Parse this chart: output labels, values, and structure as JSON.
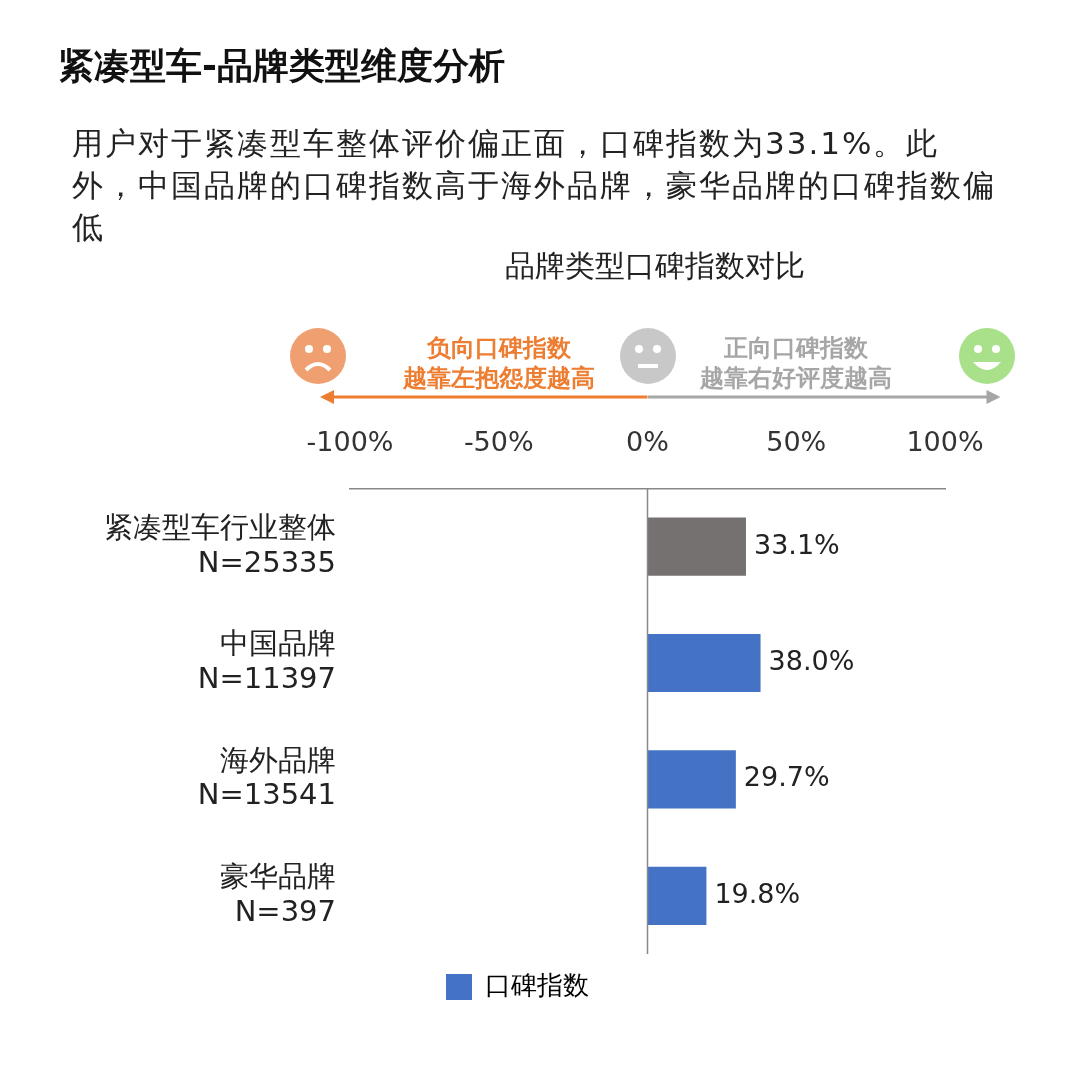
{
  "chart_data": {
    "type": "bar",
    "orientation": "horizontal",
    "title": "紧凑型车-品牌类型维度分析",
    "subtitle": "用户对于紧凑型车整体评价偏正面，口碑指数为33.1%。此外，中国品牌的口碑指数高于海外品牌，豪华品牌的口碑指数偏低",
    "annotations": [
      "品牌类型口碑指数对比",
      "负向口碑指数",
      "越靠左抱怨度越高",
      "正向口碑指数",
      "越靠右好评度越高"
    ],
    "categories": [
      "紧凑型车行业整体\nN=25335",
      "中国品牌\nN=11397",
      "海外品牌\nN=13541",
      "豪华品牌\nN=397"
    ],
    "series": [
      {
        "name": "口碑指数",
        "color": "#4472c4",
        "colors": [
          "#767171",
          "#4472c4",
          "#4472c4",
          "#4472c4"
        ],
        "values": [
          33.1,
          38.0,
          29.7,
          19.8
        ],
        "value_labels": [
          "33.1%",
          "38.0%",
          "29.7%",
          "19.8%"
        ]
      }
    ],
    "xlim": [
      -100,
      100
    ],
    "xticks": [
      {
        "value": -100,
        "label": "-100%"
      },
      {
        "value": -50,
        "label": "-50%"
      },
      {
        "value": 0,
        "label": "0%"
      },
      {
        "value": 50,
        "label": "50%"
      },
      {
        "value": 100,
        "label": "100%"
      }
    ],
    "ref_lines": [
      {
        "axis": "x",
        "value": 0
      }
    ],
    "grid": false,
    "legend": "bottom"
  }
}
